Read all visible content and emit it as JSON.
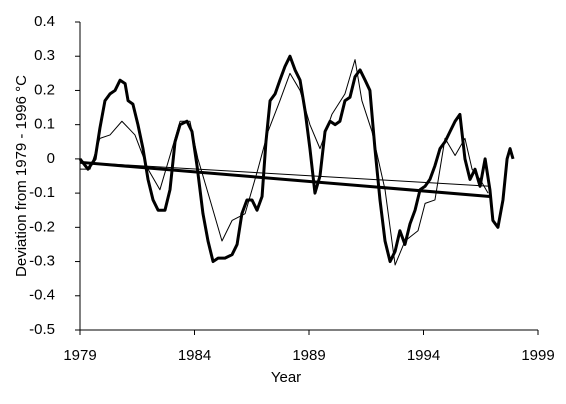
{
  "chart_data": {
    "type": "line",
    "x_label": "Year",
    "y_label": "Deviation from 1979 - 1996 °C",
    "xlim": [
      1979,
      1999
    ],
    "xticks": [
      1979,
      1984,
      1989,
      1994,
      1999
    ],
    "ylim": [
      -0.5,
      0.4
    ],
    "yticks": [
      0.4,
      0.3,
      0.2,
      0.1,
      0,
      -0.1,
      -0.2,
      -0.3,
      -0.4,
      -0.5
    ],
    "series": [
      {
        "color": "#000000",
        "line_width": 3,
        "x": [
          1979.0,
          1979.35,
          1979.66,
          1979.87,
          1980.09,
          1980.31,
          1980.53,
          1980.75,
          1980.97,
          1981.1,
          1981.31,
          1981.53,
          1981.75,
          1981.97,
          1982.19,
          1982.41,
          1982.71,
          1982.93,
          1983.15,
          1983.37,
          1983.67,
          1983.89,
          1984.11,
          1984.37,
          1984.59,
          1984.81,
          1985.03,
          1985.33,
          1985.64,
          1985.86,
          1986.07,
          1986.29,
          1986.51,
          1986.73,
          1986.95,
          1987.12,
          1987.3,
          1987.52,
          1987.73,
          1987.95,
          1988.17,
          1988.39,
          1988.61,
          1988.83,
          1989.04,
          1989.26,
          1989.48,
          1989.7,
          1989.92,
          1990.14,
          1990.35,
          1990.57,
          1990.79,
          1991.01,
          1991.23,
          1991.45,
          1991.66,
          1991.88,
          1992.1,
          1992.32,
          1992.54,
          1992.76,
          1992.97,
          1993.19,
          1993.41,
          1993.63,
          1993.85,
          1994.07,
          1994.28,
          1994.5,
          1994.72,
          1994.94,
          1995.16,
          1995.38,
          1995.59,
          1995.81,
          1996.03,
          1996.25,
          1996.47,
          1996.69,
          1996.9,
          1997.03,
          1997.25,
          1997.47,
          1997.65,
          1997.78,
          1997.91
        ],
        "values": [
          0.0,
          -0.03,
          0.0,
          0.09,
          0.17,
          0.19,
          0.2,
          0.23,
          0.22,
          0.17,
          0.16,
          0.1,
          0.03,
          -0.06,
          -0.12,
          -0.15,
          -0.15,
          -0.09,
          0.05,
          0.1,
          0.11,
          0.08,
          -0.02,
          -0.16,
          -0.24,
          -0.3,
          -0.29,
          -0.29,
          -0.28,
          -0.25,
          -0.16,
          -0.12,
          -0.12,
          -0.15,
          -0.11,
          0.05,
          0.17,
          0.19,
          0.23,
          0.27,
          0.3,
          0.26,
          0.23,
          0.14,
          0.03,
          -0.1,
          -0.05,
          0.08,
          0.11,
          0.1,
          0.11,
          0.17,
          0.18,
          0.24,
          0.26,
          0.23,
          0.2,
          0.03,
          -0.12,
          -0.24,
          -0.3,
          -0.27,
          -0.21,
          -0.25,
          -0.19,
          -0.15,
          -0.09,
          -0.08,
          -0.06,
          -0.02,
          0.03,
          0.05,
          0.08,
          0.11,
          0.13,
          0.0,
          -0.06,
          -0.03,
          -0.08,
          0.0,
          -0.09,
          -0.18,
          -0.2,
          -0.12,
          0.0,
          0.03,
          0.0
        ]
      },
      {
        "color": "#000000",
        "line_width": 1,
        "x": [
          1979.0,
          1979.44,
          1979.87,
          1980.31,
          1980.83,
          1981.4,
          1981.97,
          1982.49,
          1983.02,
          1983.37,
          1983.8,
          1984.15,
          1984.68,
          1985.2,
          1985.64,
          1986.21,
          1986.77,
          1987.21,
          1987.73,
          1988.17,
          1988.61,
          1989.04,
          1989.48,
          1990.0,
          1990.57,
          1991.01,
          1991.31,
          1991.75,
          1992.32,
          1992.76,
          1993.19,
          1993.76,
          1994.07,
          1994.5,
          1994.94,
          1995.38,
          1995.81,
          1996.12,
          1996.47,
          1996.82
        ],
        "values": [
          -0.03,
          -0.03,
          0.06,
          0.07,
          0.11,
          0.07,
          -0.03,
          -0.09,
          0.03,
          0.11,
          0.11,
          0.0,
          -0.12,
          -0.24,
          -0.18,
          -0.16,
          -0.03,
          0.08,
          0.17,
          0.25,
          0.2,
          0.1,
          0.03,
          0.13,
          0.19,
          0.29,
          0.17,
          0.08,
          -0.09,
          -0.31,
          -0.24,
          -0.21,
          -0.13,
          -0.12,
          0.06,
          0.01,
          0.06,
          -0.03,
          -0.06,
          -0.1
        ]
      },
      {
        "color": "#000000",
        "line_width": 3,
        "x": [
          1979.0,
          1996.9
        ],
        "values": [
          -0.01,
          -0.11
        ]
      },
      {
        "color": "#000000",
        "line_width": 1,
        "x": [
          1979.0,
          1996.9
        ],
        "values": [
          -0.01,
          -0.08
        ]
      }
    ]
  }
}
